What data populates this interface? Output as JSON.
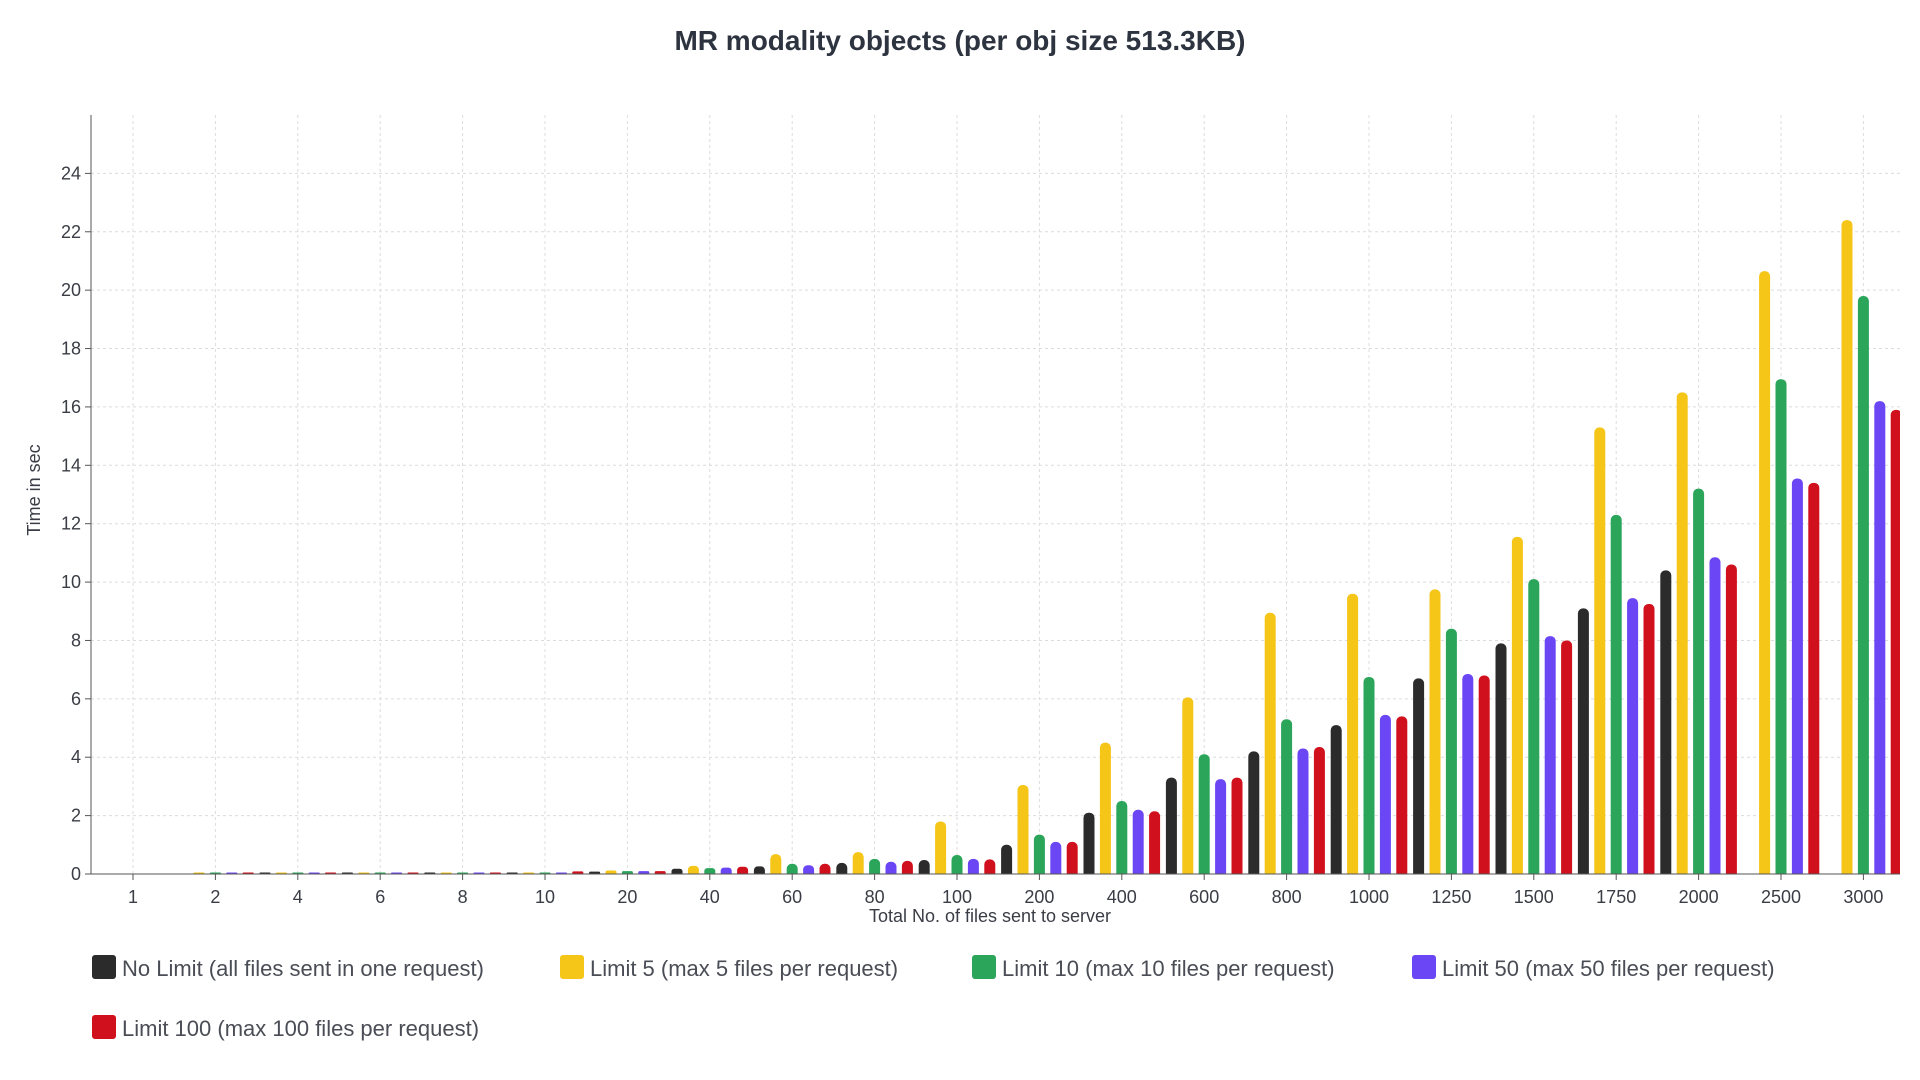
{
  "chart_data": {
    "type": "bar",
    "title": "MR modality objects (per obj size 513.3KB)",
    "xlabel": "Total No. of files sent to server",
    "ylabel": "Time in sec",
    "ylim": [
      0,
      26
    ],
    "yticks": [
      0,
      2,
      4,
      6,
      8,
      10,
      12,
      14,
      16,
      18,
      20,
      22,
      24
    ],
    "grid": true,
    "legend_position": "bottom",
    "categories": [
      "1",
      "2",
      "4",
      "6",
      "8",
      "10",
      "20",
      "40",
      "60",
      "80",
      "100",
      "200",
      "400",
      "600",
      "800",
      "1000",
      "1250",
      "1500",
      "1750",
      "2000",
      "2500",
      "3000"
    ],
    "series": [
      {
        "name": "No Limit (all files sent in one request)",
        "color": "#2b2b2b",
        "values": [
          0,
          0,
          0.01,
          0.02,
          0.03,
          0.04,
          0.08,
          0.18,
          0.26,
          0.38,
          0.48,
          1.0,
          2.1,
          3.3,
          4.2,
          5.1,
          6.7,
          7.9,
          9.1,
          10.4,
          0,
          0
        ]
      },
      {
        "name": "Limit 5 (max 5 files per request)",
        "color": "#f5c518",
        "values": [
          0,
          0.02,
          0.02,
          0.03,
          0.03,
          0.05,
          0.12,
          0.28,
          0.68,
          0.75,
          1.8,
          3.05,
          4.5,
          6.05,
          8.95,
          9.6,
          9.75,
          11.55,
          15.3,
          16.5,
          20.65,
          22.4
        ]
      },
      {
        "name": "Limit 10 (max 10 files per request)",
        "color": "#2aa55a",
        "values": [
          0,
          0.02,
          0.02,
          0.02,
          0.03,
          0.04,
          0.1,
          0.2,
          0.35,
          0.52,
          0.65,
          1.35,
          2.5,
          4.1,
          5.3,
          6.75,
          8.4,
          10.1,
          12.3,
          13.2,
          16.95,
          19.8
        ]
      },
      {
        "name": "Limit 50 (max 50 files per request)",
        "color": "#6b46f5",
        "values": [
          0,
          0.01,
          0.02,
          0.02,
          0.03,
          0.04,
          0.1,
          0.22,
          0.3,
          0.42,
          0.52,
          1.1,
          2.2,
          3.25,
          4.3,
          5.45,
          6.85,
          8.15,
          9.45,
          10.85,
          13.55,
          16.2
        ]
      },
      {
        "name": "Limit 100 (max 100 files per request)",
        "color": "#d0101c",
        "values": [
          0,
          0.01,
          0.02,
          0.02,
          0.03,
          0.09,
          0.1,
          0.25,
          0.35,
          0.45,
          0.5,
          1.1,
          2.15,
          3.3,
          4.35,
          5.4,
          6.8,
          8.0,
          9.25,
          10.6,
          13.4,
          15.9
        ]
      }
    ]
  }
}
